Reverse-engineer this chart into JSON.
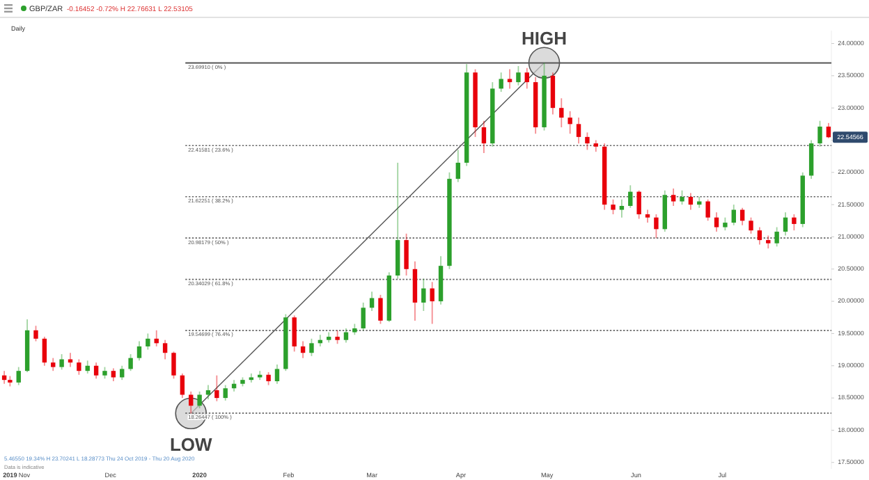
{
  "chart_data": {
    "type": "candlestick",
    "title": "GBP/ZAR",
    "subtitle": "-0.16452 -0.72% H 22.76631 L 22.53105",
    "annotations": [
      "Daily",
      "5.46550 19.34% H 23.70241 L 18.28773 Thu 24 Oct 2019 - Thu 20 Aug 2020",
      "Data is indicative",
      {
        "text": "HIGH",
        "x": "2020-04-30",
        "y": 23.6991
      },
      {
        "text": "LOW",
        "x": "2019-12-29",
        "y": 18.26447
      },
      {
        "text": "22.54566",
        "x": "2020-08-07",
        "y": 22.54566
      }
    ],
    "colors": [
      "#e8000b",
      "#e8000b",
      "#2ca02c",
      "#2ca02c",
      "#e8000b",
      "#e8000b",
      "#e8000b",
      "#2ca02c",
      "#e8000b",
      "#e8000b",
      "#2ca02c",
      "#e8000b",
      "#2ca02c",
      "#e8000b",
      "#2ca02c",
      "#2ca02c",
      "#2ca02c",
      "#2ca02c",
      "#e8000b",
      "#e8000b",
      "#e8000b",
      "#e8000b",
      "#e8000b",
      "#2ca02c",
      "#2ca02c",
      "#e8000b",
      "#2ca02c",
      "#2ca02c",
      "#2ca02c",
      "#2ca02c",
      "#2ca02c",
      "#e8000b",
      "#2ca02c",
      "#2ca02c",
      "#e8000b",
      "#e8000b",
      "#2ca02c",
      "#2ca02c",
      "#2ca02c",
      "#e8000b",
      "#2ca02c",
      "#2ca02c",
      "#2ca02c",
      "#2ca02c",
      "#e8000b",
      "#2ca02c",
      "#2ca02c",
      "#e8000b",
      "#e8000b",
      "#2ca02c",
      "#e8000b",
      "#2ca02c",
      "#2ca02c",
      "#2ca02c",
      "#2ca02c",
      "#e8000b",
      "#e8000b",
      "#2ca02c",
      "#2ca02c",
      "#e8000b",
      "#2ca02c",
      "#e8000b",
      "#e8000b",
      "#2ca02c",
      "#e8000b",
      "#e8000b",
      "#e8000b",
      "#e8000b",
      "#e8000b",
      "#e8000b",
      "#e8000b",
      "#e8000b",
      "#2ca02c",
      "#2ca02c",
      "#e8000b",
      "#e8000b",
      "#e8000b",
      "#2ca02c",
      "#e8000b",
      "#2ca02c",
      "#e8000b",
      "#2ca02c",
      "#e8000b",
      "#e8000b",
      "#2ca02c",
      "#2ca02c",
      "#e8000b",
      "#e8000b",
      "#e8000b",
      "#e8000b",
      "#2ca02c",
      "#2ca02c",
      "#e8000b",
      "#2ca02c",
      "#2ca02c",
      "#2ca02c",
      "#e8000b"
    ],
    "x": [
      "2019-10-25",
      "2019-10-27",
      "2019-10-30",
      "2019-11-02",
      "2019-11-05",
      "2019-11-08",
      "2019-11-11",
      "2019-11-14",
      "2019-11-17",
      "2019-11-20",
      "2019-11-23",
      "2019-11-26",
      "2019-11-29",
      "2019-12-02",
      "2019-12-05",
      "2019-12-08",
      "2019-12-11",
      "2019-12-14",
      "2019-12-17",
      "2019-12-20",
      "2019-12-23",
      "2019-12-26",
      "2019-12-29",
      "2020-01-01",
      "2020-01-04",
      "2020-01-07",
      "2020-01-10",
      "2020-01-13",
      "2020-01-16",
      "2020-01-19",
      "2020-01-22",
      "2020-01-25",
      "2020-01-28",
      "2020-01-31",
      "2020-02-03",
      "2020-02-06",
      "2020-02-09",
      "2020-02-12",
      "2020-02-15",
      "2020-02-18",
      "2020-02-21",
      "2020-02-24",
      "2020-02-27",
      "2020-03-01",
      "2020-03-04",
      "2020-03-07",
      "2020-03-10",
      "2020-03-13",
      "2020-03-16",
      "2020-03-19",
      "2020-03-22",
      "2020-03-25",
      "2020-03-28",
      "2020-03-31",
      "2020-04-03",
      "2020-04-06",
      "2020-04-09",
      "2020-04-12",
      "2020-04-15",
      "2020-04-18",
      "2020-04-21",
      "2020-04-24",
      "2020-04-27",
      "2020-04-30",
      "2020-05-03",
      "2020-05-06",
      "2020-05-09",
      "2020-05-12",
      "2020-05-15",
      "2020-05-18",
      "2020-05-21",
      "2020-05-24",
      "2020-05-27",
      "2020-05-30",
      "2020-06-02",
      "2020-06-05",
      "2020-06-08",
      "2020-06-11",
      "2020-06-14",
      "2020-06-17",
      "2020-06-20",
      "2020-06-23",
      "2020-06-26",
      "2020-06-29",
      "2020-07-02",
      "2020-07-05",
      "2020-07-08",
      "2020-07-11",
      "2020-07-14",
      "2020-07-17",
      "2020-07-20",
      "2020-07-23",
      "2020-07-26",
      "2020-07-29",
      "2020-08-01",
      "2020-08-04",
      "2020-08-07"
    ],
    "ohlc": [
      [
        18.85,
        18.92,
        18.72,
        18.78
      ],
      [
        18.78,
        18.84,
        18.68,
        18.74
      ],
      [
        18.74,
        18.98,
        18.7,
        18.92
      ],
      [
        18.92,
        19.72,
        18.9,
        19.55
      ],
      [
        19.55,
        19.62,
        19.38,
        19.42
      ],
      [
        19.42,
        19.45,
        19.0,
        19.05
      ],
      [
        19.05,
        19.12,
        18.92,
        18.98
      ],
      [
        18.98,
        19.18,
        18.94,
        19.1
      ],
      [
        19.1,
        19.2,
        18.98,
        19.05
      ],
      [
        19.05,
        19.1,
        18.86,
        18.92
      ],
      [
        18.92,
        19.08,
        18.88,
        19.0
      ],
      [
        19.0,
        19.05,
        18.8,
        18.85
      ],
      [
        18.85,
        18.98,
        18.8,
        18.92
      ],
      [
        18.92,
        18.96,
        18.76,
        18.82
      ],
      [
        18.82,
        19.0,
        18.78,
        18.95
      ],
      [
        18.95,
        19.18,
        18.92,
        19.12
      ],
      [
        19.12,
        19.38,
        19.08,
        19.3
      ],
      [
        19.3,
        19.5,
        19.25,
        19.42
      ],
      [
        19.42,
        19.55,
        19.3,
        19.35
      ],
      [
        19.35,
        19.4,
        19.1,
        19.2
      ],
      [
        19.2,
        19.22,
        18.8,
        18.85
      ],
      [
        18.85,
        18.88,
        18.5,
        18.55
      ],
      [
        18.55,
        18.6,
        18.26,
        18.38
      ],
      [
        18.38,
        18.6,
        18.34,
        18.55
      ],
      [
        18.55,
        18.7,
        18.48,
        18.62
      ],
      [
        18.62,
        18.85,
        18.45,
        18.5
      ],
      [
        18.5,
        18.7,
        18.46,
        18.65
      ],
      [
        18.65,
        18.78,
        18.6,
        18.72
      ],
      [
        18.72,
        18.82,
        18.68,
        18.78
      ],
      [
        18.78,
        18.88,
        18.74,
        18.82
      ],
      [
        18.82,
        18.92,
        18.78,
        18.86
      ],
      [
        18.86,
        18.9,
        18.7,
        18.76
      ],
      [
        18.76,
        19.02,
        18.72,
        18.95
      ],
      [
        18.95,
        19.8,
        18.92,
        19.75
      ],
      [
        19.75,
        19.78,
        19.22,
        19.3
      ],
      [
        19.3,
        19.38,
        19.12,
        19.2
      ],
      [
        19.2,
        19.42,
        19.15,
        19.35
      ],
      [
        19.35,
        19.48,
        19.3,
        19.4
      ],
      [
        19.4,
        19.52,
        19.36,
        19.45
      ],
      [
        19.45,
        19.55,
        19.34,
        19.4
      ],
      [
        19.4,
        19.58,
        19.36,
        19.52
      ],
      [
        19.52,
        19.65,
        19.48,
        19.58
      ],
      [
        19.58,
        19.98,
        19.55,
        19.9
      ],
      [
        19.9,
        20.15,
        19.85,
        20.05
      ],
      [
        20.05,
        20.1,
        19.65,
        19.7
      ],
      [
        19.7,
        20.45,
        19.68,
        20.4
      ],
      [
        20.4,
        22.15,
        20.35,
        20.95
      ],
      [
        20.95,
        21.05,
        20.4,
        20.5
      ],
      [
        20.5,
        20.62,
        19.7,
        19.98
      ],
      [
        19.98,
        20.35,
        19.85,
        20.2
      ],
      [
        20.2,
        20.3,
        19.65,
        20.0
      ],
      [
        20.0,
        20.7,
        19.95,
        20.55
      ],
      [
        20.55,
        22.0,
        20.5,
        21.9
      ],
      [
        21.9,
        22.35,
        21.85,
        22.15
      ],
      [
        22.15,
        23.68,
        22.1,
        23.55
      ],
      [
        23.55,
        23.6,
        22.55,
        22.7
      ],
      [
        22.7,
        22.8,
        22.3,
        22.45
      ],
      [
        22.45,
        23.4,
        22.4,
        23.3
      ],
      [
        23.3,
        23.55,
        23.25,
        23.45
      ],
      [
        23.45,
        23.6,
        23.3,
        23.4
      ],
      [
        23.4,
        23.65,
        23.35,
        23.55
      ],
      [
        23.55,
        23.62,
        23.3,
        23.4
      ],
      [
        23.4,
        23.48,
        22.6,
        22.7
      ],
      [
        22.7,
        23.7,
        22.65,
        23.5
      ],
      [
        23.5,
        23.55,
        22.9,
        23.0
      ],
      [
        23.0,
        23.15,
        22.7,
        22.85
      ],
      [
        22.85,
        22.95,
        22.6,
        22.75
      ],
      [
        22.75,
        22.85,
        22.45,
        22.55
      ],
      [
        22.55,
        22.62,
        22.35,
        22.45
      ],
      [
        22.45,
        22.5,
        22.32,
        22.4
      ],
      [
        22.4,
        22.45,
        21.42,
        21.5
      ],
      [
        21.5,
        21.58,
        21.35,
        21.42
      ],
      [
        21.42,
        21.58,
        21.3,
        21.48
      ],
      [
        21.48,
        21.8,
        21.45,
        21.7
      ],
      [
        21.7,
        21.72,
        21.28,
        21.35
      ],
      [
        21.35,
        21.42,
        21.22,
        21.3
      ],
      [
        21.3,
        21.35,
        20.98,
        21.12
      ],
      [
        21.12,
        21.72,
        21.08,
        21.65
      ],
      [
        21.65,
        21.75,
        21.48,
        21.55
      ],
      [
        21.55,
        21.72,
        21.5,
        21.62
      ],
      [
        21.62,
        21.68,
        21.42,
        21.5
      ],
      [
        21.5,
        21.62,
        21.45,
        21.55
      ],
      [
        21.55,
        21.58,
        21.25,
        21.3
      ],
      [
        21.3,
        21.38,
        21.08,
        21.15
      ],
      [
        21.15,
        21.3,
        21.1,
        21.22
      ],
      [
        21.22,
        21.5,
        21.18,
        21.42
      ],
      [
        21.42,
        21.45,
        21.18,
        21.25
      ],
      [
        21.25,
        21.3,
        21.05,
        21.1
      ],
      [
        21.1,
        21.15,
        20.88,
        20.95
      ],
      [
        20.95,
        21.02,
        20.82,
        20.9
      ],
      [
        20.9,
        21.15,
        20.85,
        21.08
      ],
      [
        21.08,
        21.38,
        21.02,
        21.3
      ],
      [
        21.3,
        21.35,
        21.1,
        21.2
      ],
      [
        21.2,
        22.0,
        21.15,
        21.95
      ],
      [
        21.95,
        22.5,
        21.9,
        22.45
      ],
      [
        22.45,
        22.8,
        22.4,
        22.71018
      ],
      [
        22.71018,
        22.76631,
        22.53105,
        22.54566
      ]
    ],
    "series": [
      {
        "type": "line",
        "color": "#555555",
        "marker": "circle",
        "x": [
          "2019-12-29",
          "2020-04-30"
        ],
        "values": [
          18.26,
          23.7
        ]
      }
    ],
    "ref_lines": [
      {
        "axis": "y",
        "value": 23.6991,
        "label": "23.69910 ( 0% )",
        "color": "#555555",
        "line_style": "solid"
      },
      {
        "axis": "y",
        "value": 22.41581,
        "label": "22.41581 ( 23.6% )",
        "color": "#666666",
        "line_style": "dotted"
      },
      {
        "axis": "y",
        "value": 21.62251,
        "label": "21.62251 ( 38.2% )",
        "color": "#666666",
        "line_style": "dotted"
      },
      {
        "axis": "y",
        "value": 20.98179,
        "label": "20.98179 ( 50% )",
        "color": "#666666",
        "line_style": "dotted"
      },
      {
        "axis": "y",
        "value": 20.34029,
        "label": "20.34029 ( 61.8% )",
        "color": "#666666",
        "line_style": "dotted"
      },
      {
        "axis": "y",
        "value": 19.54699,
        "label": "19.54699 ( 76.4% )",
        "color": "#666666",
        "line_style": "dotted"
      },
      {
        "axis": "y",
        "value": 18.26447,
        "label": "18.26447 ( 100% )",
        "color": "#666666",
        "line_style": "dotted"
      }
    ],
    "xlim": [
      "2019-10-24",
      "2020-08-08"
    ],
    "xticks": [
      {
        "value": "2019-10-27",
        "label": "2019"
      },
      {
        "value": "2019-11-01",
        "label": "Nov"
      },
      {
        "value": "2019-12-01",
        "label": "Dec"
      },
      {
        "value": "2020-01-01",
        "label": "2020"
      },
      {
        "value": "2020-02-01",
        "label": "Feb"
      },
      {
        "value": "2020-03-01",
        "label": "Mar"
      },
      {
        "value": "2020-04-01",
        "label": "Apr"
      },
      {
        "value": "2020-05-01",
        "label": "May"
      },
      {
        "value": "2020-06-01",
        "label": "Jun"
      },
      {
        "value": "2020-07-01",
        "label": "Jul"
      }
    ],
    "ylim": [
      17.4,
      24.2
    ],
    "yticks": [
      {
        "value": 17.5,
        "label": "17.50000"
      },
      {
        "value": 18,
        "label": "18.00000"
      },
      {
        "value": 18.5,
        "label": "18.50000"
      },
      {
        "value": 19,
        "label": "19.00000"
      },
      {
        "value": 19.5,
        "label": "19.50000"
      },
      {
        "value": 20,
        "label": "20.00000"
      },
      {
        "value": 20.5,
        "label": "20.50000"
      },
      {
        "value": 21,
        "label": "21.00000"
      },
      {
        "value": 21.5,
        "label": "21.50000"
      },
      {
        "value": 22,
        "label": "22.00000"
      },
      {
        "value": 22.5,
        "label": null
      },
      {
        "value": 23,
        "label": "23.00000"
      },
      {
        "value": 23.5,
        "label": "23.50000"
      },
      {
        "value": 24,
        "label": "24.00000"
      }
    ]
  }
}
